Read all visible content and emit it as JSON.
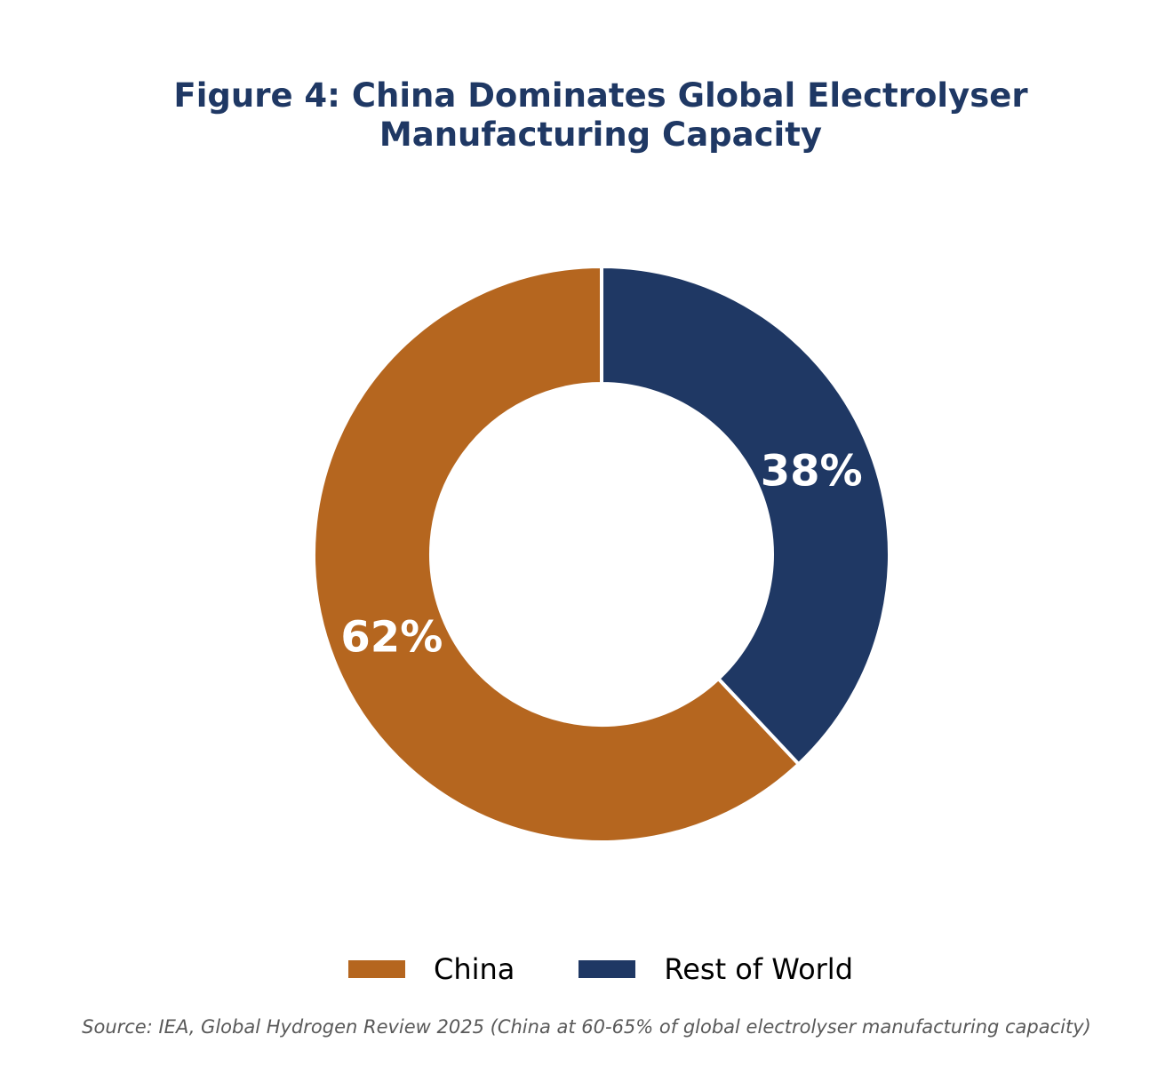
{
  "chart_data": {
    "type": "pie",
    "title_lines": [
      "Figure 4: China Dominates Global Electrolyser",
      "Manufacturing Capacity"
    ],
    "donut": true,
    "slices": [
      {
        "label": "China",
        "value": 62,
        "display": "62%",
        "color": "#b5661f"
      },
      {
        "label": "Rest of World",
        "value": 38,
        "display": "38%",
        "color": "#1f3864"
      }
    ],
    "legend_position": "bottom",
    "source": "Source: IEA, Global Hydrogen Review 2025 (China at 60-65% of global electrolyser manufacturing capacity)"
  },
  "colors": {
    "title": "#1f3864",
    "slice_label": "#ffffff",
    "source": "#595959",
    "separator": "#ffffff"
  }
}
